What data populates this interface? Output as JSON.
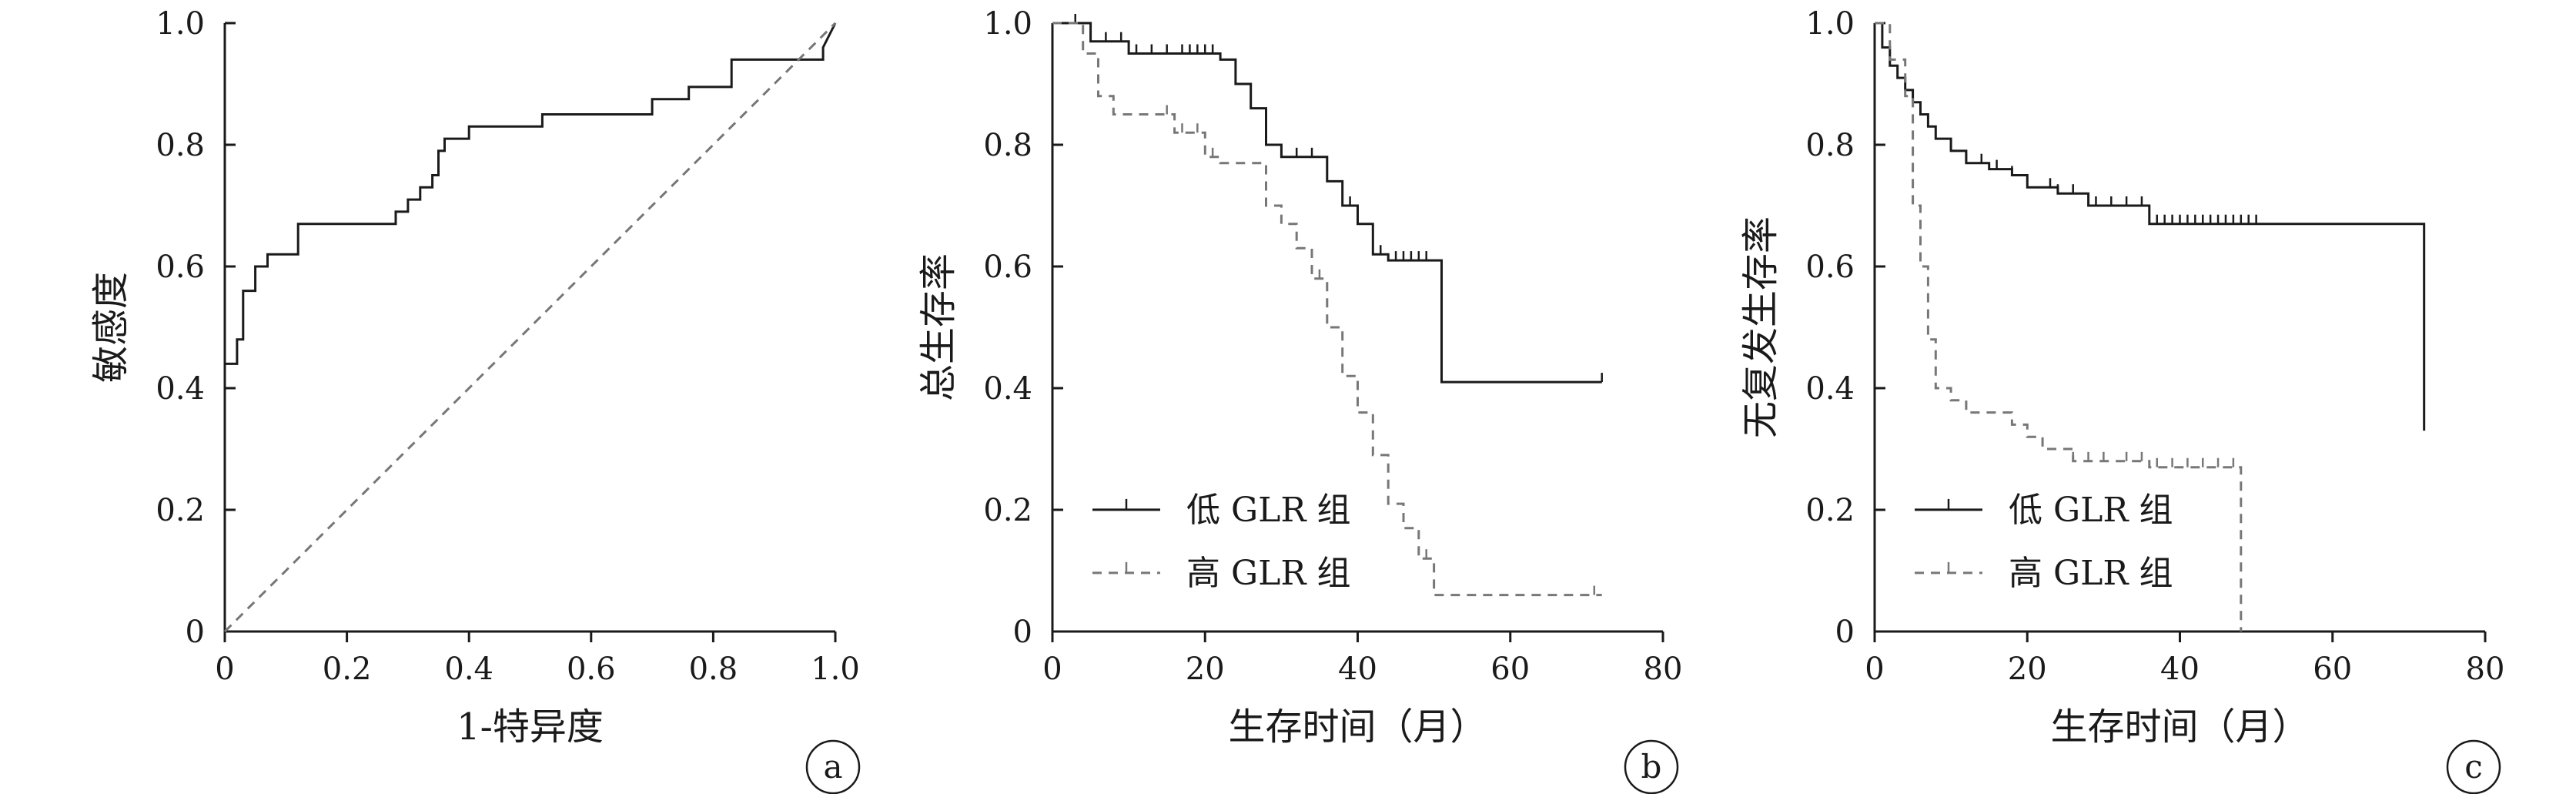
{
  "colors": {
    "axis": "#1a1a1a",
    "low_series": "#1a1a1a",
    "high_series": "#777777",
    "reference": "#777777"
  },
  "chart_data": [
    {
      "type": "line",
      "panel": "a",
      "xlabel": "1-特异度",
      "ylabel": "敏感度",
      "xlim": [
        0,
        1.0
      ],
      "ylim": [
        0,
        1.0
      ],
      "xticks": [
        "0",
        "0.2",
        "0.4",
        "0.6",
        "0.8",
        "1.0"
      ],
      "yticks": [
        "0",
        "0.2",
        "0.4",
        "0.6",
        "0.8",
        "1.0"
      ],
      "grid": false,
      "series": [
        {
          "style": "solid-step",
          "x": [
            0,
            0,
            0.02,
            0.02,
            0.03,
            0.03,
            0.05,
            0.05,
            0.07,
            0.07,
            0.12,
            0.12,
            0.28,
            0.28,
            0.3,
            0.3,
            0.32,
            0.32,
            0.34,
            0.34,
            0.35,
            0.35,
            0.36,
            0.36,
            0.4,
            0.4,
            0.52,
            0.52,
            0.7,
            0.7,
            0.76,
            0.76,
            0.83,
            0.83,
            0.98,
            0.98,
            1.0
          ],
          "y": [
            0,
            0.44,
            0.44,
            0.48,
            0.48,
            0.56,
            0.56,
            0.6,
            0.6,
            0.62,
            0.62,
            0.67,
            0.67,
            0.69,
            0.69,
            0.71,
            0.71,
            0.73,
            0.73,
            0.75,
            0.75,
            0.79,
            0.79,
            0.81,
            0.81,
            0.83,
            0.83,
            0.85,
            0.85,
            0.875,
            0.875,
            0.895,
            0.895,
            0.94,
            0.94,
            0.96,
            1.0
          ]
        },
        {
          "style": "dashed-reference",
          "x": [
            0,
            1.0
          ],
          "y": [
            0,
            1.0
          ]
        }
      ],
      "panel_tag": "a"
    },
    {
      "type": "line",
      "panel": "b",
      "xlabel": "生存时间（月）",
      "ylabel": "总生存率",
      "xlim": [
        0,
        80
      ],
      "ylim": [
        0,
        1.0
      ],
      "xticks": [
        "0",
        "20",
        "40",
        "60",
        "80"
      ],
      "yticks": [
        "0",
        "0.2",
        "0.4",
        "0.6",
        "0.8",
        "1.0"
      ],
      "grid": false,
      "legend_position": "bottom-left",
      "series": [
        {
          "name": "低 GLR 组",
          "style": "solid-step",
          "x": [
            0,
            5,
            5,
            10,
            10,
            22,
            22,
            24,
            24,
            26,
            26,
            28,
            28,
            30,
            30,
            36,
            36,
            38,
            38,
            40,
            40,
            42,
            42,
            44,
            44,
            51,
            51,
            72
          ],
          "y": [
            1.0,
            1.0,
            0.97,
            0.97,
            0.95,
            0.95,
            0.94,
            0.94,
            0.9,
            0.9,
            0.86,
            0.86,
            0.8,
            0.8,
            0.78,
            0.78,
            0.74,
            0.74,
            0.7,
            0.7,
            0.67,
            0.67,
            0.62,
            0.62,
            0.61,
            0.61,
            0.41,
            0.41
          ],
          "censor_x": [
            3,
            5,
            7,
            9,
            11,
            13,
            15,
            17,
            18,
            19,
            20,
            21,
            30,
            32,
            34,
            39,
            43,
            45,
            46,
            47,
            48,
            49,
            72
          ]
        },
        {
          "name": "高 GLR 组",
          "style": "dashed-step",
          "x": [
            0,
            4,
            4,
            6,
            6,
            8,
            8,
            16,
            16,
            20,
            20,
            22,
            22,
            28,
            28,
            30,
            30,
            32,
            32,
            34,
            34,
            36,
            36,
            38,
            38,
            40,
            40,
            42,
            42,
            44,
            44,
            46,
            46,
            48,
            48,
            50,
            50,
            70,
            70,
            72
          ],
          "y": [
            1.0,
            1.0,
            0.95,
            0.95,
            0.88,
            0.88,
            0.85,
            0.85,
            0.82,
            0.82,
            0.78,
            0.78,
            0.77,
            0.77,
            0.7,
            0.7,
            0.67,
            0.67,
            0.63,
            0.63,
            0.58,
            0.58,
            0.5,
            0.5,
            0.42,
            0.42,
            0.36,
            0.36,
            0.29,
            0.29,
            0.21,
            0.21,
            0.17,
            0.17,
            0.12,
            0.12,
            0.06,
            0.06,
            0.06,
            0.06
          ],
          "censor_x": [
            15,
            17,
            19,
            21,
            35,
            49,
            71
          ]
        }
      ],
      "panel_tag": "b"
    },
    {
      "type": "line",
      "panel": "c",
      "xlabel": "生存时间（月）",
      "ylabel": "无复发生存率",
      "xlim": [
        0,
        80
      ],
      "ylim": [
        0,
        1.0
      ],
      "xticks": [
        "0",
        "20",
        "40",
        "60",
        "80"
      ],
      "yticks": [
        "0",
        "0.2",
        "0.4",
        "0.6",
        "0.8",
        "1.0"
      ],
      "grid": false,
      "legend_position": "bottom-left",
      "series": [
        {
          "name": "低 GLR 组",
          "style": "solid-step",
          "x": [
            0,
            1,
            1,
            2,
            2,
            3,
            3,
            4,
            4,
            5,
            5,
            6,
            6,
            7,
            7,
            8,
            8,
            10,
            10,
            12,
            12,
            15,
            15,
            18,
            18,
            20,
            20,
            24,
            24,
            28,
            28,
            36,
            36,
            72,
            72
          ],
          "y": [
            1.0,
            1.0,
            0.96,
            0.96,
            0.93,
            0.93,
            0.91,
            0.91,
            0.89,
            0.89,
            0.87,
            0.87,
            0.85,
            0.85,
            0.83,
            0.83,
            0.81,
            0.81,
            0.79,
            0.79,
            0.77,
            0.77,
            0.76,
            0.76,
            0.75,
            0.75,
            0.73,
            0.73,
            0.72,
            0.72,
            0.7,
            0.7,
            0.67,
            0.67,
            0.33
          ],
          "censor_x": [
            10,
            12,
            14,
            16,
            18,
            20,
            23,
            24,
            26,
            29,
            31,
            33,
            35,
            37,
            38,
            39,
            40,
            41,
            42,
            43,
            44,
            45,
            46,
            47,
            48,
            49,
            50
          ]
        },
        {
          "name": "高 GLR 组",
          "style": "dashed-step",
          "x": [
            0,
            2,
            2,
            4,
            4,
            5,
            5,
            6,
            6,
            7,
            7,
            8,
            8,
            10,
            10,
            12,
            12,
            18,
            18,
            20,
            20,
            22,
            22,
            26,
            26,
            36,
            36,
            48,
            48
          ],
          "y": [
            1.0,
            1.0,
            0.94,
            0.94,
            0.88,
            0.88,
            0.7,
            0.7,
            0.6,
            0.6,
            0.48,
            0.48,
            0.4,
            0.4,
            0.38,
            0.38,
            0.36,
            0.36,
            0.34,
            0.34,
            0.32,
            0.32,
            0.3,
            0.3,
            0.28,
            0.28,
            0.27,
            0.27,
            0.0
          ],
          "censor_x": [
            26,
            28,
            30,
            33,
            35,
            37,
            39,
            41,
            43,
            45,
            47
          ]
        }
      ],
      "panel_tag": "c"
    }
  ]
}
